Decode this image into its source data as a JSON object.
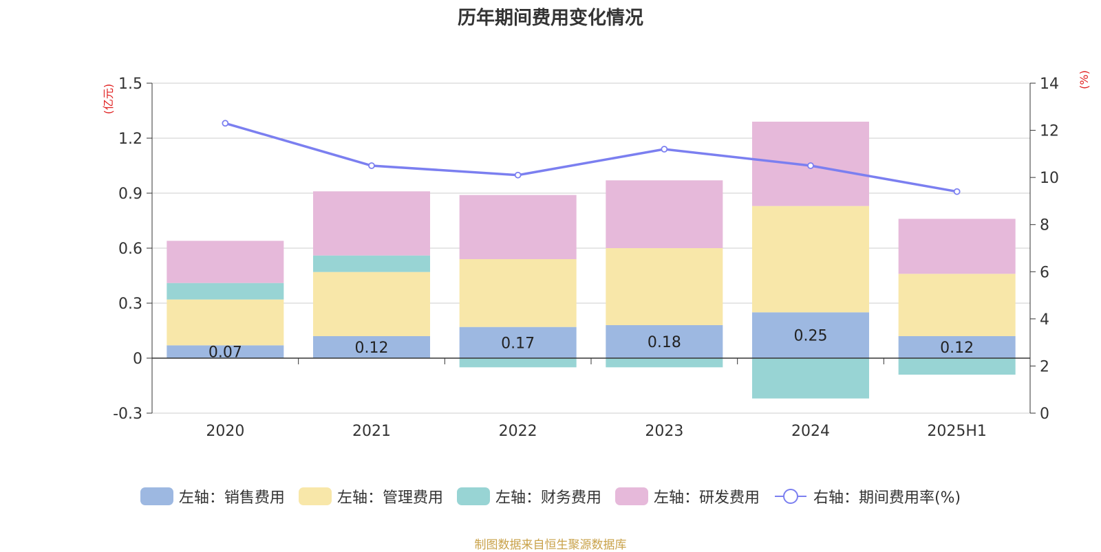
{
  "title": "历年期间费用变化情况",
  "left_unit": "(亿元)",
  "right_unit": "(%)",
  "source": "制图数据来自恒生聚源数据库",
  "colors": {
    "sales": "#9db8e1",
    "admin": "#f8e7a9",
    "finance": "#98d4d4",
    "rnd": "#e6b9da",
    "rate": "#7b7ff0",
    "unit": "#e02020",
    "source": "#c9a24a"
  },
  "chart_data": {
    "type": "bar",
    "stacked": true,
    "categories": [
      "2020",
      "2021",
      "2022",
      "2023",
      "2024",
      "2025H1"
    ],
    "series": [
      {
        "key": "sales",
        "name": "左轴：销售费用",
        "axis": "left",
        "values": [
          0.07,
          0.12,
          0.17,
          0.18,
          0.25,
          0.12
        ],
        "data_labels": [
          "0.07",
          "0.12",
          "0.17",
          "0.18",
          "0.25",
          "0.12"
        ]
      },
      {
        "key": "admin",
        "name": "左轴：管理费用",
        "axis": "left",
        "values": [
          0.25,
          0.35,
          0.37,
          0.42,
          0.58,
          0.34
        ]
      },
      {
        "key": "finance",
        "name": "左轴：财务费用",
        "axis": "left",
        "values": [
          0.09,
          0.09,
          -0.05,
          -0.05,
          -0.22,
          -0.09
        ]
      },
      {
        "key": "rnd",
        "name": "左轴：研发费用",
        "axis": "left",
        "values": [
          0.23,
          0.35,
          0.35,
          0.37,
          0.46,
          0.3
        ]
      },
      {
        "key": "rate",
        "name": "右轴：期间费用率(%)",
        "axis": "right",
        "type": "line",
        "values": [
          12.3,
          10.5,
          10.1,
          11.2,
          10.5,
          9.4
        ]
      }
    ],
    "y_left": {
      "min": -0.3,
      "max": 1.5,
      "ticks": [
        "-0.3",
        "0",
        "0.3",
        "0.6",
        "0.9",
        "1.2",
        "1.5"
      ]
    },
    "y_right": {
      "min": 0,
      "max": 14,
      "ticks": [
        "0",
        "2",
        "4",
        "6",
        "8",
        "10",
        "12",
        "14"
      ]
    },
    "grid": true,
    "legend_position": "bottom"
  }
}
